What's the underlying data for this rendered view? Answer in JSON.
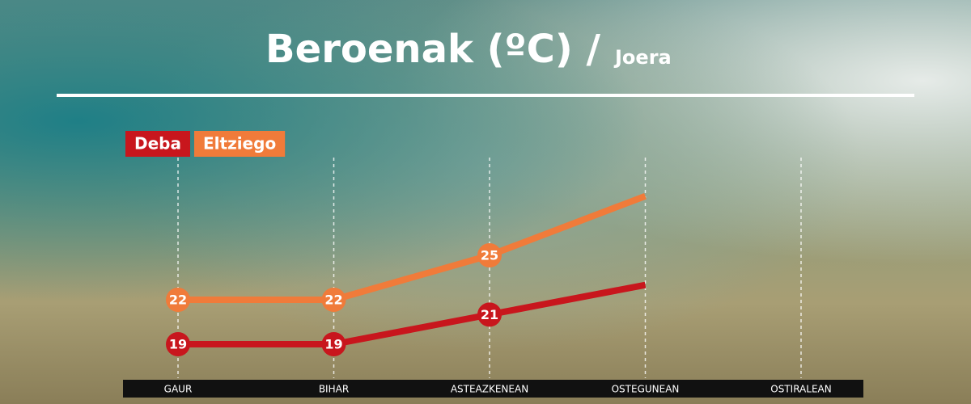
{
  "chart_data": {
    "type": "line",
    "title": "Beroenak (ºC) /",
    "subtitle": "Joera",
    "categories": [
      "GAUR",
      "BIHAR",
      "ASTEAZKENEAN",
      "OSTEGUNEAN",
      "OSTIRALEAN"
    ],
    "series": [
      {
        "name": "Deba",
        "color": "#c8161d",
        "values": [
          19,
          19,
          21,
          23,
          null
        ],
        "value_labels": [
          "19",
          "19",
          "21",
          null,
          null
        ]
      },
      {
        "name": "Eltziego",
        "color": "#f07b3a",
        "values": [
          22,
          22,
          25,
          29,
          null
        ],
        "value_labels": [
          "22",
          "22",
          "25",
          null,
          null
        ]
      }
    ],
    "grid": true
  }
}
